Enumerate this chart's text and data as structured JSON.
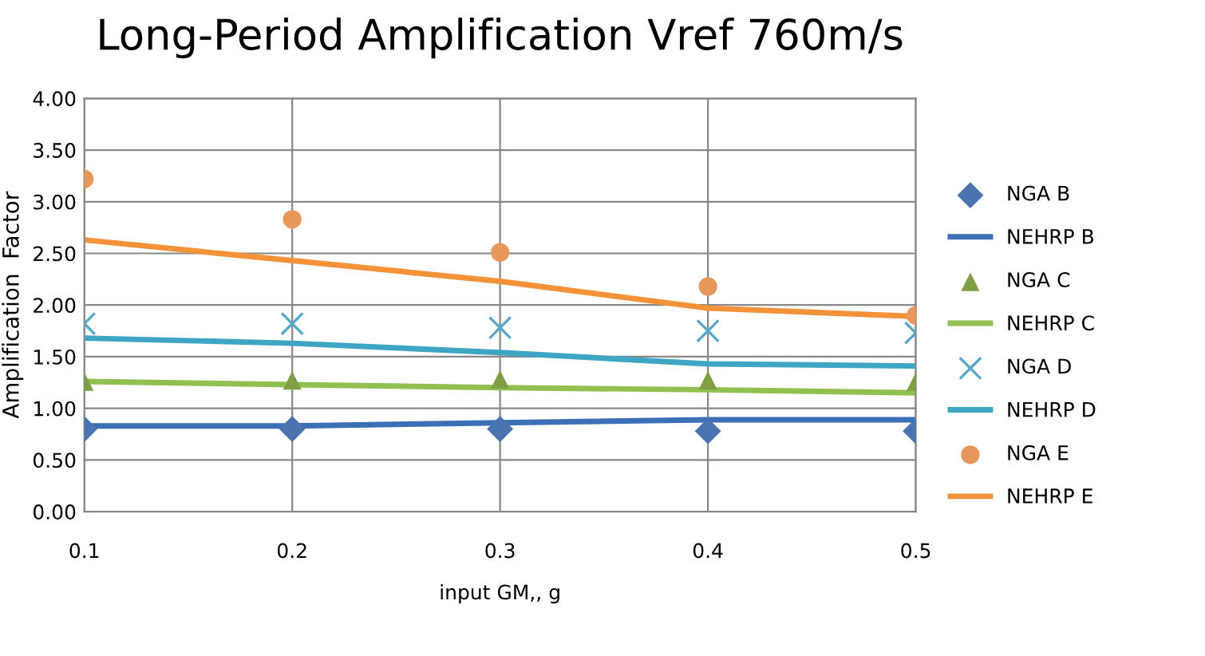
{
  "chart_data": {
    "type": "line",
    "title": "Long-Period Amplification Vref 760m/s",
    "xlabel": "input GM,, g",
    "ylabel": "Amplification  Factor",
    "categories": [
      "0.1",
      "0.2",
      "0.3",
      "0.4",
      "0.5"
    ],
    "ylim": [
      0,
      4
    ],
    "yticks": [
      {
        "value": 0,
        "label": "0.00"
      },
      {
        "value": 0.5,
        "label": "0.50"
      },
      {
        "value": 1,
        "label": "1.00"
      },
      {
        "value": 1.5,
        "label": "1.50"
      },
      {
        "value": 2,
        "label": "2.00"
      },
      {
        "value": 2.5,
        "label": "2.50"
      },
      {
        "value": 3,
        "label": "3.00"
      },
      {
        "value": 3.5,
        "label": "3.50"
      },
      {
        "value": 4,
        "label": "4.00"
      }
    ],
    "grid": true,
    "legend": "right",
    "series": [
      {
        "name": "NGA B",
        "type": "scatter",
        "marker": "diamond",
        "color": "#4a73b0",
        "values": [
          0.8,
          0.8,
          0.8,
          0.78,
          0.78
        ]
      },
      {
        "name": "NEHRP B",
        "color": "#3b6fb6",
        "values": [
          0.83,
          0.83,
          0.86,
          0.89,
          0.89
        ]
      },
      {
        "name": "NGA C",
        "type": "scatter",
        "marker": "triangle",
        "color": "#7f9f45",
        "values": [
          1.26,
          1.27,
          1.28,
          1.27,
          1.26
        ]
      },
      {
        "name": "NEHRP C",
        "color": "#92c050",
        "values": [
          1.26,
          1.23,
          1.2,
          1.18,
          1.15
        ]
      },
      {
        "name": "NGA D",
        "type": "scatter",
        "marker": "cross",
        "color": "#5aa8c8",
        "values": [
          1.82,
          1.82,
          1.78,
          1.75,
          1.73
        ]
      },
      {
        "name": "NEHRP D",
        "color": "#3ea6c4",
        "values": [
          1.68,
          1.63,
          1.54,
          1.43,
          1.41
        ]
      },
      {
        "name": "NGA E",
        "type": "scatter",
        "marker": "circle",
        "color": "#e8975a",
        "values": [
          3.22,
          2.83,
          2.51,
          2.18,
          1.9
        ]
      },
      {
        "name": "NEHRP E",
        "color": "#f39238",
        "values": [
          2.63,
          2.43,
          2.23,
          1.97,
          1.89
        ]
      }
    ]
  }
}
